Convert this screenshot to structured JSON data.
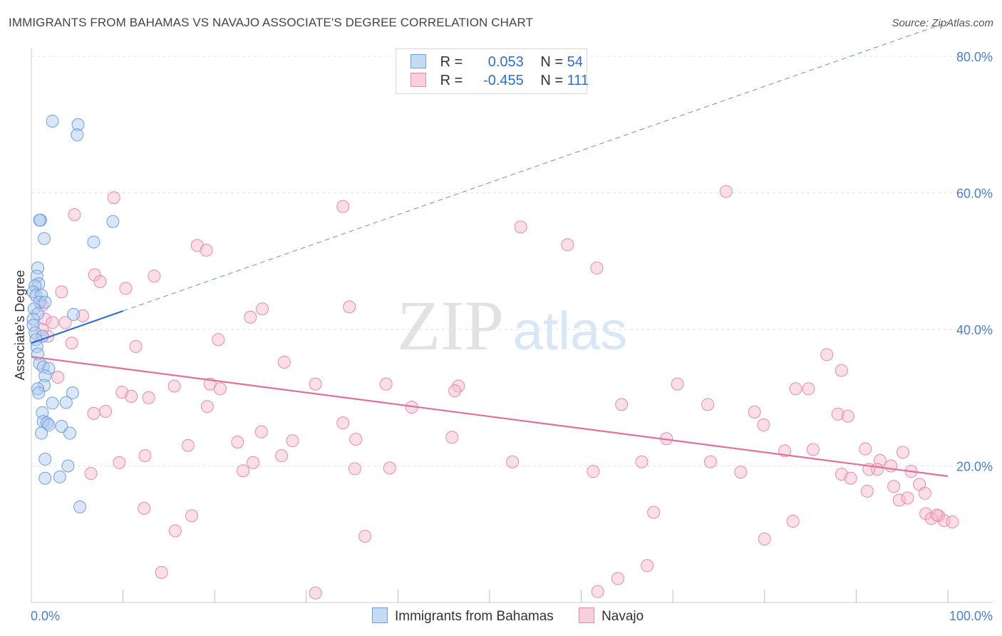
{
  "title": "IMMIGRANTS FROM BAHAMAS VS NAVAJO ASSOCIATE'S DEGREE CORRELATION CHART",
  "source": "Source: ZipAtlas.com",
  "watermark": {
    "zip": "ZIP",
    "atlas": "atlas"
  },
  "legend": {
    "row1": {
      "r_label": "R =",
      "r_value": "0.053",
      "n_label": "N =",
      "n_value": "54"
    },
    "row2": {
      "r_label": "R =",
      "r_value": "-0.455",
      "n_label": "N =",
      "n_value": "111"
    }
  },
  "bottom_legend": {
    "series1": "Immigrants from Bahamas",
    "series2": "Navajo"
  },
  "colors": {
    "blue_fill": "#aac8f0",
    "blue_stroke": "#6f9fe0",
    "blue_line": "#2e6fd0",
    "pink_fill": "#f6b8cb",
    "pink_stroke": "#e88aa8",
    "pink_line": "#e0709a",
    "tick_text": "#4a7fd0",
    "grid": "#e3e3e3"
  },
  "chart_data": {
    "type": "scatter",
    "title": "IMMIGRANTS FROM BAHAMAS VS NAVAJO ASSOCIATE'S DEGREE CORRELATION CHART",
    "xlabel": "",
    "ylabel": "Associate's Degree",
    "xlim": [
      0,
      100
    ],
    "ylim": [
      0,
      80
    ],
    "x_ticks": [
      "0.0%",
      "100.0%"
    ],
    "y_ticks": [
      {
        "value": 20,
        "label": "20.0%"
      },
      {
        "value": 40,
        "label": "40.0%"
      },
      {
        "value": 60,
        "label": "60.0%"
      },
      {
        "value": 80,
        "label": "80.0%"
      }
    ],
    "series": [
      {
        "name": "Immigrants from Bahamas",
        "r": 0.053,
        "n": 54,
        "trend_solid": {
          "x": [
            0,
            10
          ],
          "y": [
            38.0,
            42.7
          ]
        },
        "trend_dashed": {
          "x": [
            10,
            100
          ],
          "y": [
            42.7,
            85.0
          ]
        },
        "points": [
          [
            2.3,
            70.5
          ],
          [
            5.1,
            70.0
          ],
          [
            5.0,
            68.5
          ],
          [
            1.0,
            56.0
          ],
          [
            0.9,
            56.0
          ],
          [
            8.9,
            55.8
          ],
          [
            1.4,
            53.3
          ],
          [
            6.8,
            52.8
          ],
          [
            0.7,
            49.0
          ],
          [
            0.6,
            47.8
          ],
          [
            0.8,
            46.7
          ],
          [
            0.4,
            46.4
          ],
          [
            0.2,
            45.5
          ],
          [
            0.5,
            45.0
          ],
          [
            1.1,
            45.0
          ],
          [
            0.9,
            44.0
          ],
          [
            1.5,
            44.0
          ],
          [
            0.3,
            43.0
          ],
          [
            0.7,
            42.3
          ],
          [
            4.6,
            42.2
          ],
          [
            0.2,
            41.5
          ],
          [
            0.2,
            40.6
          ],
          [
            0.4,
            39.5
          ],
          [
            1.2,
            39.0
          ],
          [
            0.5,
            38.5
          ],
          [
            0.6,
            37.5
          ],
          [
            0.7,
            36.4
          ],
          [
            0.9,
            35.0
          ],
          [
            1.3,
            34.5
          ],
          [
            1.9,
            34.3
          ],
          [
            1.5,
            33.2
          ],
          [
            1.4,
            31.8
          ],
          [
            0.7,
            31.3
          ],
          [
            0.8,
            30.7
          ],
          [
            4.5,
            30.7
          ],
          [
            3.8,
            29.3
          ],
          [
            2.3,
            29.2
          ],
          [
            1.2,
            27.8
          ],
          [
            1.3,
            26.5
          ],
          [
            1.7,
            26.3
          ],
          [
            1.9,
            26.0
          ],
          [
            3.3,
            25.8
          ],
          [
            4.2,
            24.8
          ],
          [
            1.1,
            24.8
          ],
          [
            1.5,
            21.0
          ],
          [
            4.0,
            20.0
          ],
          [
            1.5,
            18.2
          ],
          [
            3.1,
            18.4
          ],
          [
            5.3,
            14.0
          ]
        ]
      },
      {
        "name": "Navajo",
        "r": -0.455,
        "n": 111,
        "trend": {
          "x": [
            0,
            100
          ],
          "y": [
            36.0,
            18.5
          ]
        },
        "points": [
          [
            75.8,
            60.2
          ],
          [
            9.0,
            59.3
          ],
          [
            34.0,
            58.0
          ],
          [
            4.7,
            56.8
          ],
          [
            53.4,
            55.0
          ],
          [
            18.1,
            52.3
          ],
          [
            19.1,
            51.6
          ],
          [
            58.5,
            52.4
          ],
          [
            61.7,
            49.0
          ],
          [
            6.9,
            48.0
          ],
          [
            13.4,
            47.8
          ],
          [
            7.5,
            47.0
          ],
          [
            10.3,
            46.0
          ],
          [
            3.3,
            45.5
          ],
          [
            1.2,
            43.5
          ],
          [
            25.2,
            43.0
          ],
          [
            34.7,
            43.3
          ],
          [
            5.6,
            42.0
          ],
          [
            1.5,
            41.5
          ],
          [
            23.9,
            41.8
          ],
          [
            2.3,
            41.0
          ],
          [
            3.7,
            41.0
          ],
          [
            1.8,
            39.0
          ],
          [
            1.2,
            40.0
          ],
          [
            20.4,
            38.5
          ],
          [
            4.4,
            38.0
          ],
          [
            11.4,
            37.5
          ],
          [
            27.6,
            35.2
          ],
          [
            86.8,
            36.3
          ],
          [
            88.4,
            34.0
          ],
          [
            2.9,
            33.0
          ],
          [
            15.6,
            31.7
          ],
          [
            19.5,
            32.0
          ],
          [
            20.6,
            31.3
          ],
          [
            31.0,
            32.0
          ],
          [
            38.7,
            32.0
          ],
          [
            46.6,
            31.7
          ],
          [
            70.5,
            32.0
          ],
          [
            84.8,
            31.3
          ],
          [
            83.4,
            31.3
          ],
          [
            46.2,
            31.0
          ],
          [
            9.9,
            30.8
          ],
          [
            10.9,
            30.2
          ],
          [
            12.8,
            30.0
          ],
          [
            64.4,
            29.0
          ],
          [
            73.8,
            29.0
          ],
          [
            19.2,
            28.7
          ],
          [
            41.5,
            28.6
          ],
          [
            6.8,
            27.7
          ],
          [
            8.1,
            28.0
          ],
          [
            78.9,
            27.9
          ],
          [
            88.0,
            27.6
          ],
          [
            89.1,
            27.3
          ],
          [
            79.9,
            26.0
          ],
          [
            34.0,
            26.3
          ],
          [
            25.1,
            25.0
          ],
          [
            17.1,
            23.0
          ],
          [
            22.5,
            23.5
          ],
          [
            28.5,
            23.7
          ],
          [
            35.4,
            23.9
          ],
          [
            45.9,
            24.2
          ],
          [
            69.3,
            24.0
          ],
          [
            82.2,
            22.2
          ],
          [
            85.3,
            22.4
          ],
          [
            91.0,
            22.5
          ],
          [
            95.1,
            22.0
          ],
          [
            12.4,
            21.5
          ],
          [
            27.3,
            21.5
          ],
          [
            9.6,
            20.5
          ],
          [
            24.2,
            20.5
          ],
          [
            52.5,
            20.6
          ],
          [
            66.6,
            20.6
          ],
          [
            74.1,
            20.6
          ],
          [
            92.6,
            20.8
          ],
          [
            93.8,
            20.0
          ],
          [
            92.3,
            19.5
          ],
          [
            91.4,
            19.5
          ],
          [
            96.0,
            19.2
          ],
          [
            23.1,
            19.3
          ],
          [
            35.3,
            19.6
          ],
          [
            39.1,
            19.7
          ],
          [
            61.3,
            19.2
          ],
          [
            77.4,
            19.1
          ],
          [
            6.5,
            18.9
          ],
          [
            88.4,
            18.8
          ],
          [
            89.4,
            18.2
          ],
          [
            91.2,
            16.3
          ],
          [
            94.1,
            17.0
          ],
          [
            96.9,
            17.3
          ],
          [
            97.5,
            16.0
          ],
          [
            94.7,
            15.0
          ],
          [
            95.6,
            15.3
          ],
          [
            99.0,
            12.7
          ],
          [
            97.6,
            13.0
          ],
          [
            98.2,
            12.3
          ],
          [
            99.6,
            12.0
          ],
          [
            100.5,
            11.8
          ],
          [
            98.8,
            12.8
          ],
          [
            12.3,
            13.8
          ],
          [
            17.5,
            12.7
          ],
          [
            67.9,
            13.2
          ],
          [
            83.1,
            11.9
          ],
          [
            15.7,
            10.5
          ],
          [
            36.4,
            9.7
          ],
          [
            80.0,
            9.3
          ],
          [
            14.2,
            4.4
          ],
          [
            67.2,
            5.4
          ],
          [
            31.0,
            1.4
          ],
          [
            64.0,
            3.5
          ],
          [
            61.8,
            1.6
          ]
        ]
      }
    ]
  }
}
